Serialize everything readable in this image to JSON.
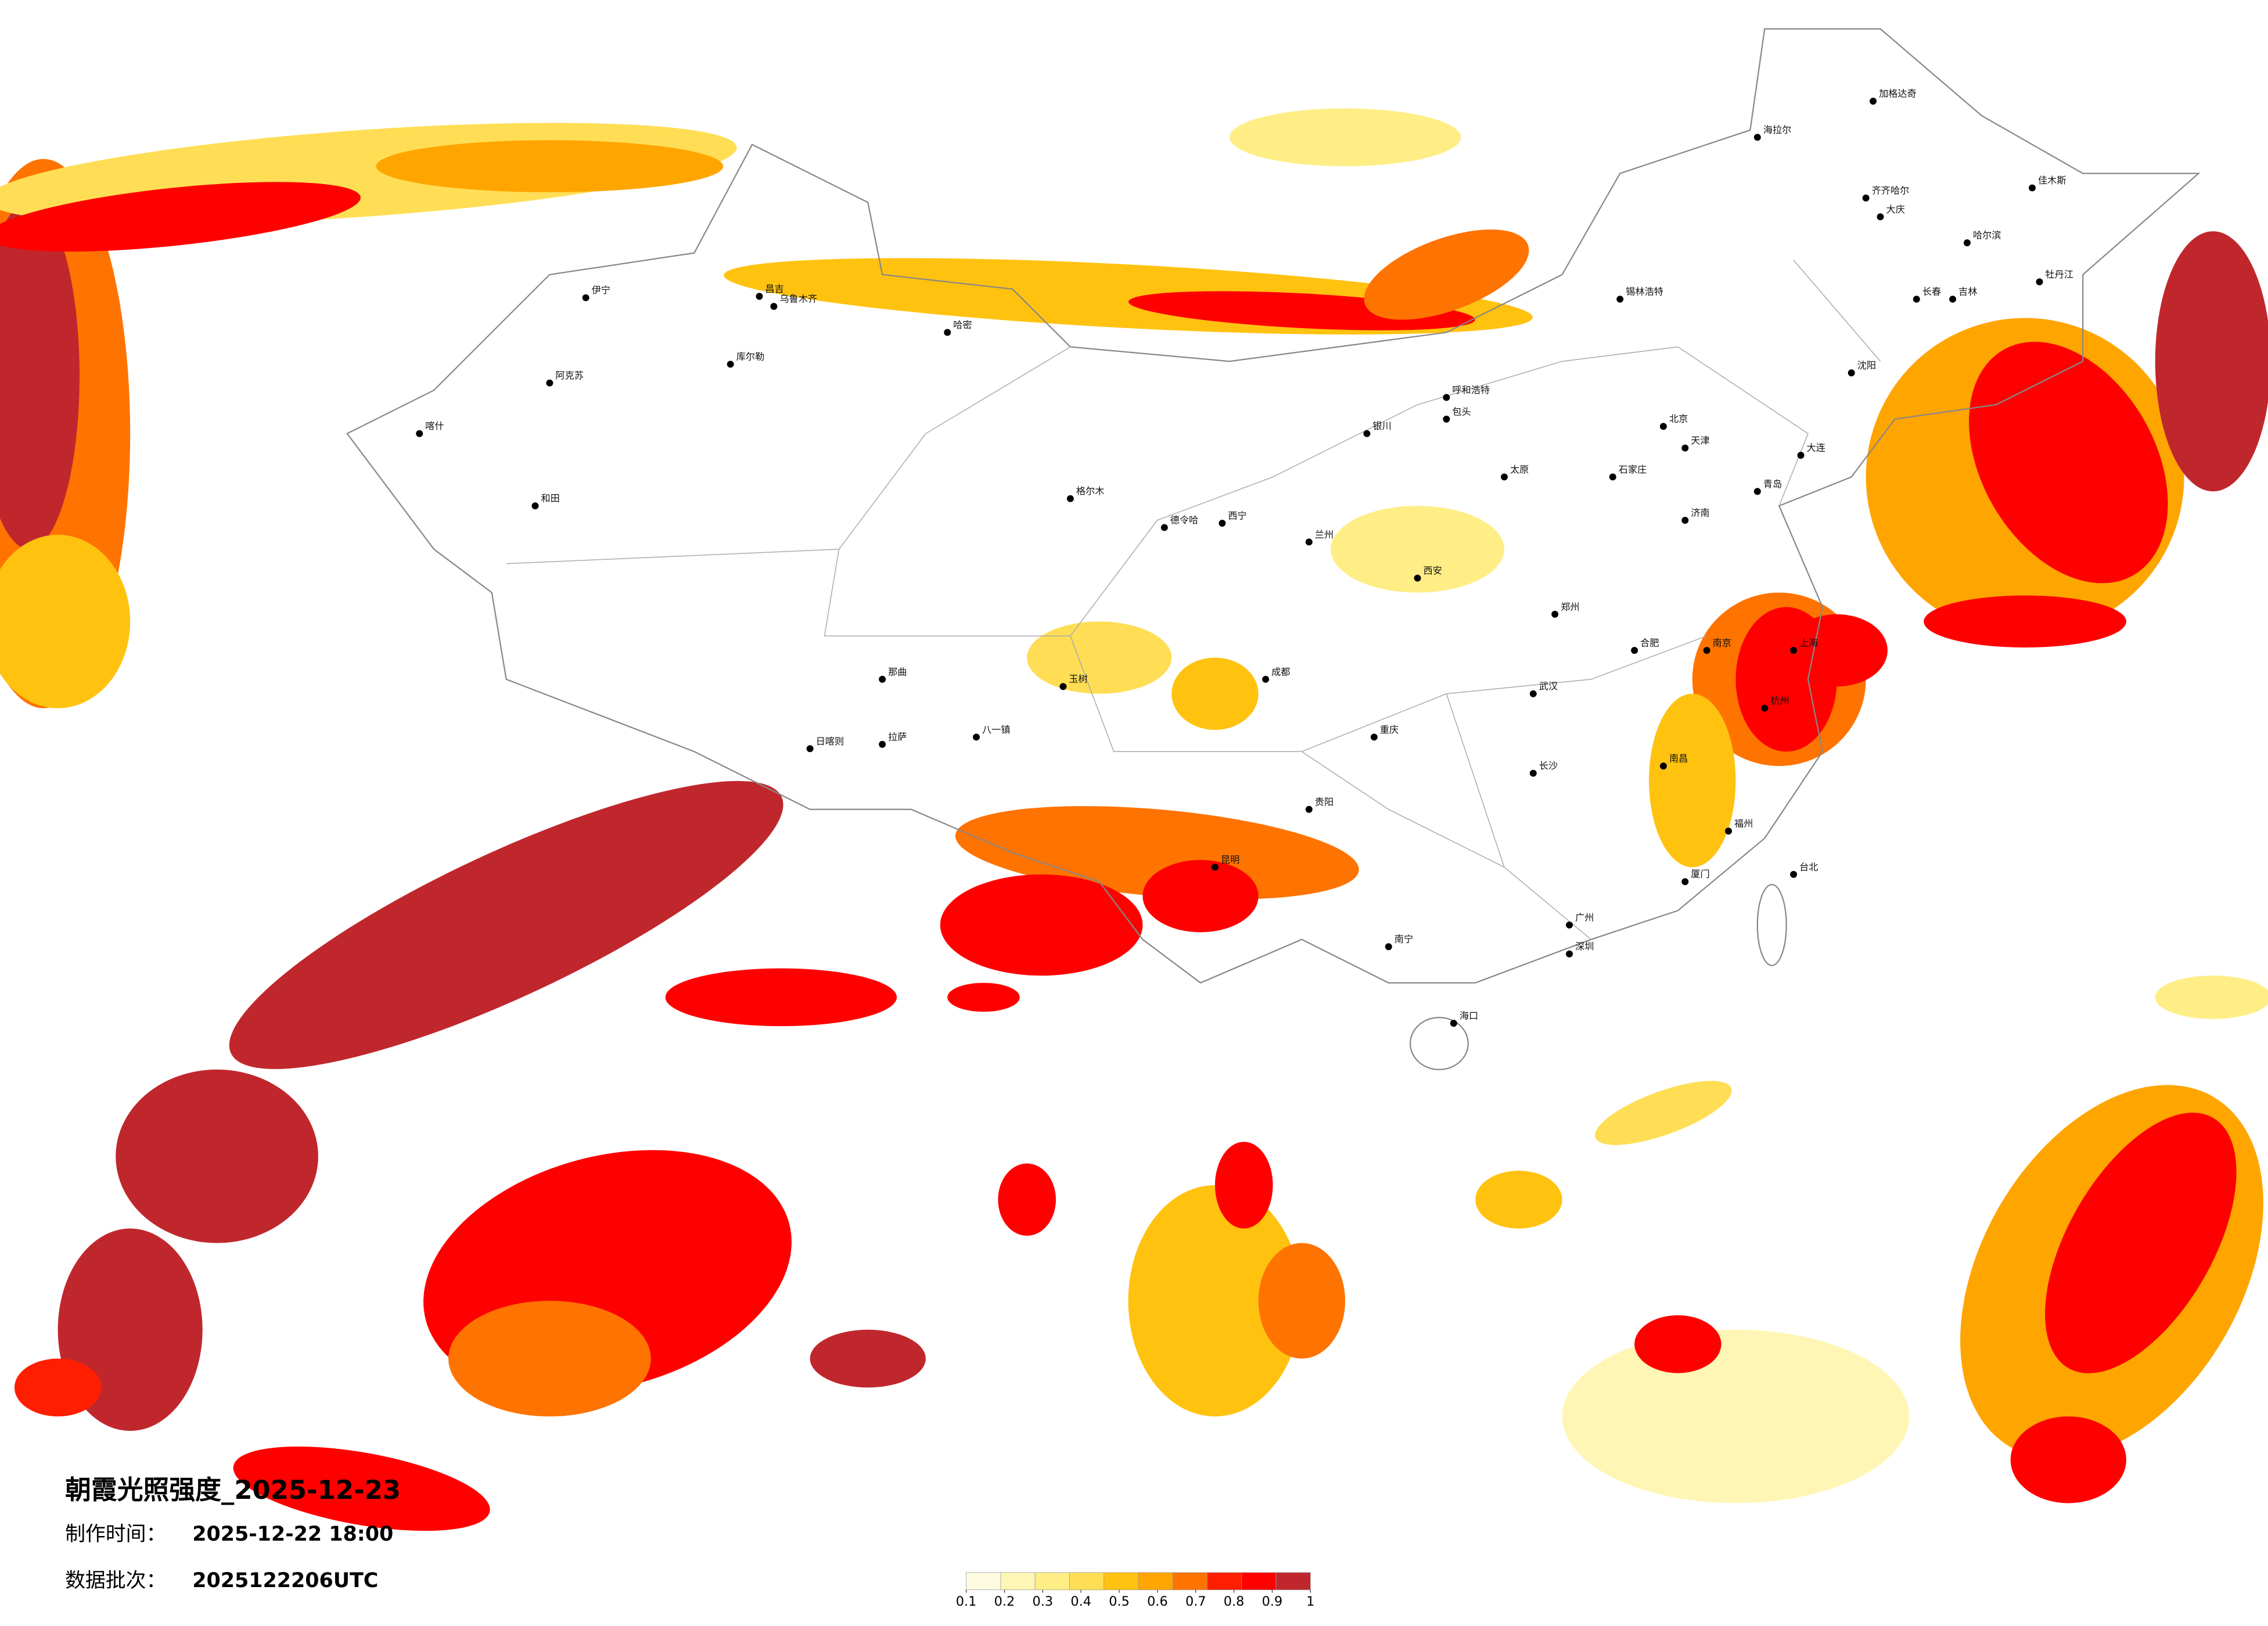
{
  "title": "朝霞光照强度_2025-12-23",
  "made_time": {
    "label": "制作时间：",
    "value": "2025-12-22 18:00"
  },
  "batch": {
    "label": "数据批次：",
    "value": "2025122206UTC"
  },
  "legend": {
    "ticks": [
      0.1,
      0.2,
      0.3,
      0.4,
      0.5,
      0.6,
      0.7,
      0.8,
      0.9,
      1
    ],
    "colors": [
      "#fffbe1",
      "#fff6b5",
      "#ffee86",
      "#ffde55",
      "#ffc20f",
      "#ffa500",
      "#ff7300",
      "#ff1e00",
      "#ff0000",
      "#c0272d"
    ]
  },
  "cities": [
    "伊宁",
    "昌吉",
    "乌鲁木齐",
    "哈密",
    "库尔勒",
    "阿克苏",
    "喀什",
    "和田",
    "格尔木",
    "德令哈",
    "西宁",
    "兰州",
    "银川",
    "呼和浩特",
    "包头",
    "锡林浩特",
    "海拉尔",
    "加格达奇",
    "齐齐哈尔",
    "大庆",
    "哈尔滨",
    "佳木斯",
    "牡丹江",
    "长春",
    "吉林",
    "沈阳",
    "大连",
    "北京",
    "天津",
    "石家庄",
    "太原",
    "济南",
    "青岛",
    "郑州",
    "西安",
    "武汉",
    "合肥",
    "南京",
    "上海",
    "杭州",
    "南昌",
    "长沙",
    "福州",
    "厦门",
    "台北",
    "广州",
    "深圳",
    "南宁",
    "海口",
    "贵阳",
    "昆明",
    "成都",
    "重庆",
    "拉萨",
    "日喀则",
    "八一镇",
    "那曲",
    "玉树"
  ]
}
